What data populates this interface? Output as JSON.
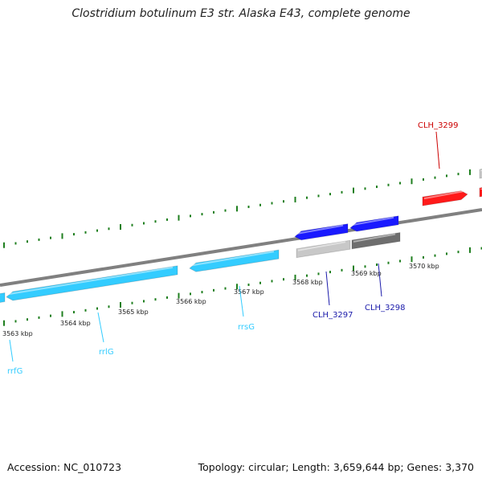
{
  "title": "Clostridium botulinum E3 str. Alaska E43, complete genome",
  "footer": {
    "accession": "Accession: NC_010723",
    "summary": "Topology: circular; Length: 3,659,644 bp; Genes: 3,370"
  },
  "colors": {
    "rrna": "#33ccff",
    "cds_blue": "#1a1aff",
    "cds_red": "#ff1a1a",
    "cds_gray_light": "#c8c8c8",
    "cds_gray_dark": "#6e6e6e",
    "backbone": "#808080",
    "ticks": "#1f7f1f",
    "label_blue": "#1a1aaa",
    "label_red": "#cc0000",
    "label_cyan": "#33ccff"
  },
  "scale_labels": [
    "3563 kbp",
    "3564 kbp",
    "3565 kbp",
    "3566 kbp",
    "3567 kbp",
    "3568 kbp",
    "3569 kbp",
    "3570 kbp"
  ],
  "gene_labels": [
    "rrfG",
    "rrlG",
    "rrsG",
    "CLH_3297",
    "CLH_3298",
    "CLH_3299"
  ]
}
